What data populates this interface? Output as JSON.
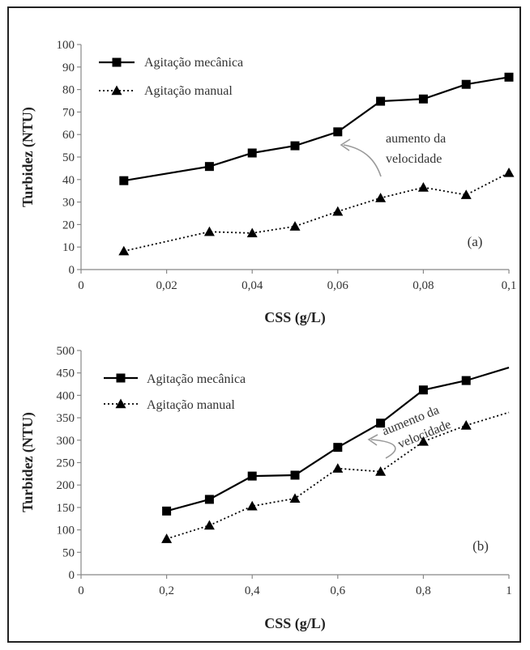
{
  "chart_data": [
    {
      "type": "line",
      "xlabel": "CSS (g/L)",
      "ylabel": "Turbidez (NTU)",
      "xlim": [
        0,
        0.1
      ],
      "ylim": [
        0,
        100
      ],
      "xticks": [
        "0",
        "0,02",
        "0,04",
        "0,06",
        "0,08",
        "0,1"
      ],
      "yticks": [
        "0",
        "10",
        "20",
        "30",
        "40",
        "50",
        "60",
        "70",
        "80",
        "90",
        "100"
      ],
      "legend_position": "top-left",
      "grid": false,
      "series": [
        {
          "name": "Agitação mecânica",
          "marker": "square",
          "line_style": "solid",
          "x": [
            0.01,
            0.03,
            0.04,
            0.05,
            0.06,
            0.07,
            0.08,
            0.09,
            0.1
          ],
          "y": [
            39.5,
            45.8,
            51.8,
            55.0,
            61.2,
            74.8,
            75.8,
            82.3,
            85.5
          ]
        },
        {
          "name": "Agitação manual",
          "marker": "triangle",
          "line_style": "dotted",
          "x": [
            0.01,
            0.03,
            0.04,
            0.05,
            0.06,
            0.07,
            0.08,
            0.09,
            0.1
          ],
          "y": [
            8.2,
            16.8,
            16.2,
            19.2,
            25.8,
            31.8,
            36.5,
            33.2,
            43.0
          ]
        }
      ],
      "annotation": {
        "lines": [
          "aumento da",
          "velocidade"
        ]
      },
      "panel_label": "(a)"
    },
    {
      "type": "line",
      "xlabel": "CSS (g/L)",
      "ylabel": "Turbidez (NTU)",
      "xlim": [
        0,
        1
      ],
      "ylim": [
        0,
        500
      ],
      "xticks": [
        "0",
        "0,2",
        "0,4",
        "0,6",
        "0,8",
        "1"
      ],
      "yticks": [
        "0",
        "50",
        "100",
        "150",
        "200",
        "250",
        "300",
        "350",
        "400",
        "450",
        "500"
      ],
      "legend_position": "top-left",
      "grid": false,
      "series": [
        {
          "name": "Agitação mecânica",
          "marker": "square",
          "line_style": "solid",
          "x": [
            0.2,
            0.3,
            0.4,
            0.5,
            0.6,
            0.7,
            0.8,
            0.9,
            1.0
          ],
          "y": [
            142,
            168,
            220,
            222,
            284,
            338,
            412,
            433,
            462
          ],
          "markers_shown": [
            true,
            true,
            true,
            true,
            true,
            true,
            true,
            true,
            false
          ]
        },
        {
          "name": "Agitação manual",
          "marker": "triangle",
          "line_style": "dotted",
          "x": [
            0.2,
            0.3,
            0.4,
            0.5,
            0.6,
            0.7,
            0.8,
            0.9,
            1.0
          ],
          "y": [
            80,
            110,
            153,
            170,
            237,
            230,
            297,
            333,
            362
          ],
          "markers_shown": [
            true,
            true,
            true,
            true,
            true,
            true,
            true,
            true,
            false
          ]
        }
      ],
      "annotation": {
        "lines": [
          "aumento da",
          "velocidade"
        ]
      },
      "panel_label": "(b)"
    }
  ]
}
